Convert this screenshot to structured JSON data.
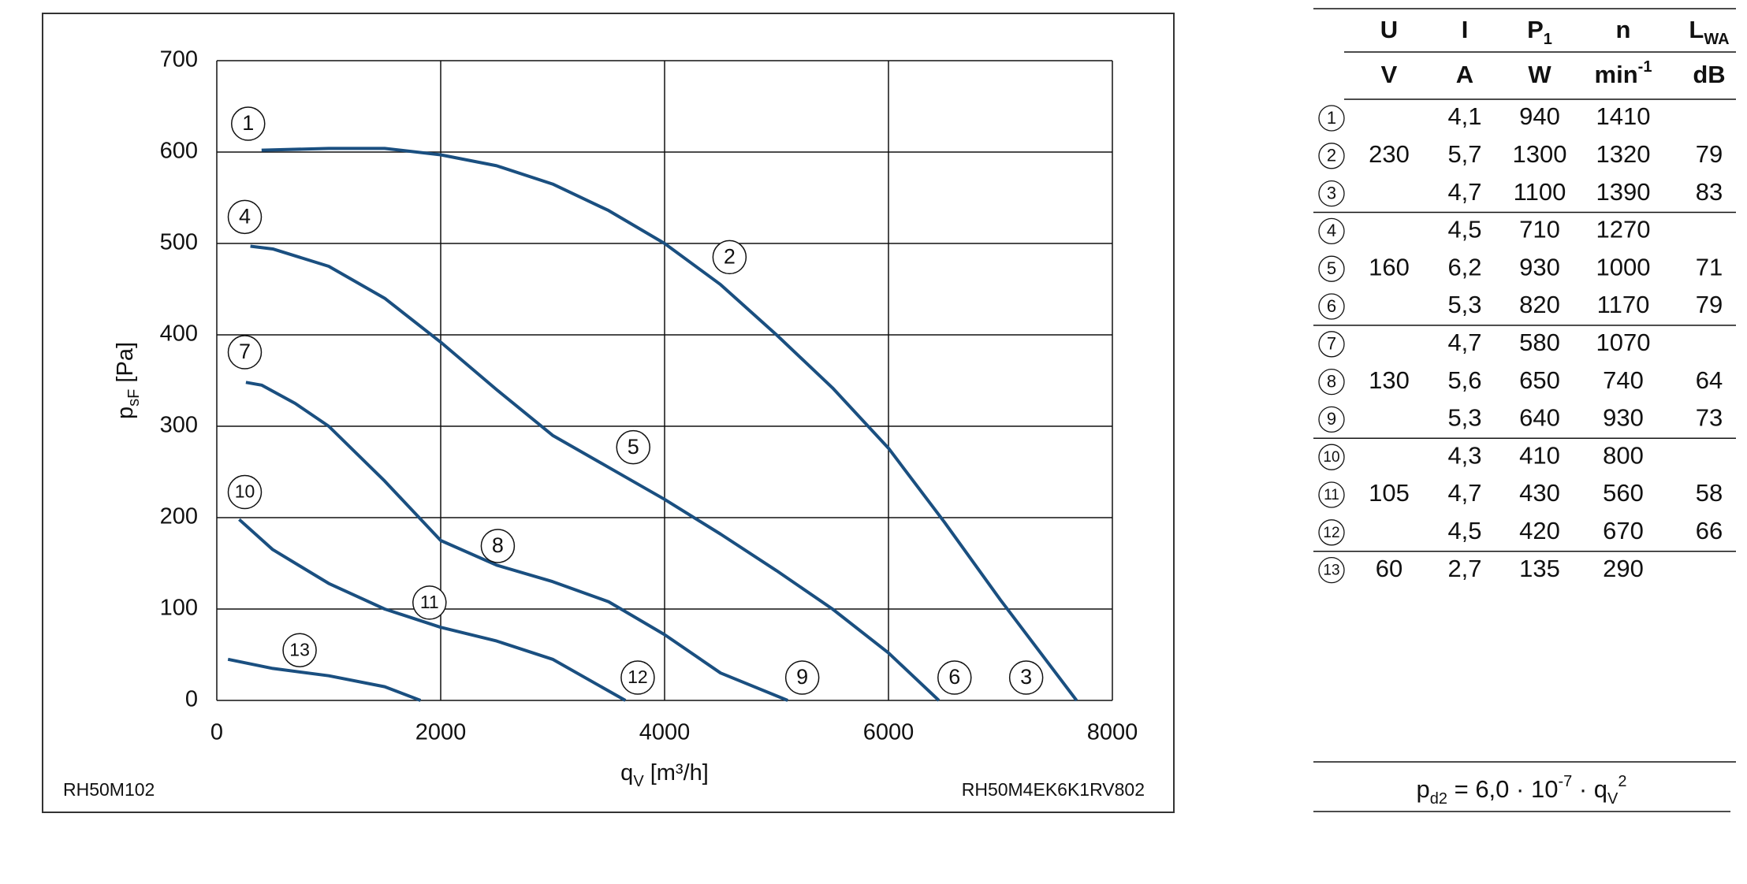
{
  "chart_data": {
    "type": "line",
    "color": "#1a4f80",
    "grid": true,
    "xlim": [
      0,
      8000
    ],
    "ylim": [
      0,
      700
    ],
    "xticks": [
      0,
      2000,
      4000,
      6000,
      8000
    ],
    "yticks": [
      0,
      100,
      200,
      300,
      400,
      500,
      600,
      700
    ],
    "x_label": {
      "main": "q",
      "sub": "V",
      "unit": " [m³/h]"
    },
    "y_label": {
      "main": "p",
      "sub": "sF",
      "unit": " [Pa]"
    },
    "notes": {
      "left": "RH50M102",
      "right": "RH50M4EK6K1RV802"
    },
    "series": [
      {
        "x": [
          400,
          1000,
          1500,
          2000,
          2500,
          3000,
          3500,
          4000,
          4500,
          5000,
          5500,
          6000,
          6500,
          7000,
          7680
        ],
        "values": [
          602,
          604,
          604,
          597,
          585,
          565,
          536,
          500,
          455,
          400,
          342,
          276,
          195,
          110,
          0
        ]
      },
      {
        "x": [
          300,
          500,
          1000,
          1500,
          2000,
          2500,
          3000,
          3500,
          4000,
          4500,
          5000,
          5500,
          6000,
          6450
        ],
        "values": [
          497,
          494,
          475,
          440,
          392,
          340,
          290,
          255,
          220,
          182,
          142,
          100,
          52,
          0
        ]
      },
      {
        "x": [
          260,
          400,
          700,
          1000,
          1500,
          2000,
          2500,
          3000,
          3500,
          4000,
          4500,
          5100
        ],
        "values": [
          348,
          345,
          325,
          300,
          240,
          175,
          148,
          130,
          108,
          72,
          30,
          0
        ]
      },
      {
        "x": [
          200,
          500,
          1000,
          1500,
          2000,
          2500,
          3000,
          3650
        ],
        "values": [
          198,
          165,
          128,
          100,
          80,
          65,
          45,
          0
        ]
      },
      {
        "x": [
          100,
          500,
          1000,
          1500,
          1820
        ],
        "values": [
          45,
          35,
          27,
          15,
          0
        ]
      }
    ],
    "annotations": [
      {
        "text": "1",
        "x": 280,
        "y": 631
      },
      {
        "text": "2",
        "x": 4580,
        "y": 485
      },
      {
        "text": "3",
        "x": 7230,
        "y": 25
      },
      {
        "text": "4",
        "x": 250,
        "y": 529
      },
      {
        "text": "5",
        "x": 3720,
        "y": 277
      },
      {
        "text": "6",
        "x": 6590,
        "y": 25
      },
      {
        "text": "7",
        "x": 250,
        "y": 381
      },
      {
        "text": "8",
        "x": 2510,
        "y": 169
      },
      {
        "text": "9",
        "x": 5230,
        "y": 25
      },
      {
        "text": "10",
        "x": 250,
        "y": 228
      },
      {
        "text": "11",
        "x": 1900,
        "y": 107
      },
      {
        "text": "12",
        "x": 3760,
        "y": 25
      },
      {
        "text": "13",
        "x": 740,
        "y": 55
      }
    ]
  },
  "table": {
    "header": [
      {
        "t": "U"
      },
      {
        "t": "I"
      },
      {
        "t": "P",
        "sub": "1"
      },
      {
        "t": "n"
      },
      {
        "t": "L",
        "sub": "WA"
      }
    ],
    "units": [
      {
        "t": "V"
      },
      {
        "t": "A"
      },
      {
        "t": "W"
      },
      {
        "t": "min",
        "sup": "-1"
      },
      {
        "t": "dB"
      }
    ],
    "groups": [
      {
        "U": "230",
        "rows": [
          {
            "id": "1",
            "I": "4,1",
            "P": "940",
            "n": "1410"
          },
          {
            "id": "2",
            "I": "5,7",
            "P": "1300",
            "n": "1320",
            "L": "79"
          },
          {
            "id": "3",
            "I": "4,7",
            "P": "1100",
            "n": "1390",
            "L": "83"
          }
        ]
      },
      {
        "U": "160",
        "rows": [
          {
            "id": "4",
            "I": "4,5",
            "P": "710",
            "n": "1270"
          },
          {
            "id": "5",
            "I": "6,2",
            "P": "930",
            "n": "1000",
            "L": "71"
          },
          {
            "id": "6",
            "I": "5,3",
            "P": "820",
            "n": "1170",
            "L": "79"
          }
        ]
      },
      {
        "U": "130",
        "rows": [
          {
            "id": "7",
            "I": "4,7",
            "P": "580",
            "n": "1070"
          },
          {
            "id": "8",
            "I": "5,6",
            "P": "650",
            "n": "740",
            "L": "64"
          },
          {
            "id": "9",
            "I": "5,3",
            "P": "640",
            "n": "930",
            "L": "73"
          }
        ]
      },
      {
        "U": "105",
        "rows": [
          {
            "id": "10",
            "I": "4,3",
            "P": "410",
            "n": "800"
          },
          {
            "id": "11",
            "I": "4,7",
            "P": "430",
            "n": "560",
            "L": "58"
          },
          {
            "id": "12",
            "I": "4,5",
            "P": "420",
            "n": "670",
            "L": "66"
          }
        ]
      },
      {
        "U": "60",
        "rows": [
          {
            "id": "13",
            "I": "2,7",
            "P": "135",
            "n": "290"
          }
        ]
      }
    ]
  },
  "formula": [
    {
      "text": "p"
    },
    {
      "text": "d2",
      "pos": "sub"
    },
    {
      "text": " = 6,0 · 10"
    },
    {
      "text": "-7",
      "pos": "sup"
    },
    {
      "text": " · q"
    },
    {
      "text": "V",
      "pos": "sub"
    },
    {
      "text": "2",
      "pos": "sup"
    }
  ]
}
